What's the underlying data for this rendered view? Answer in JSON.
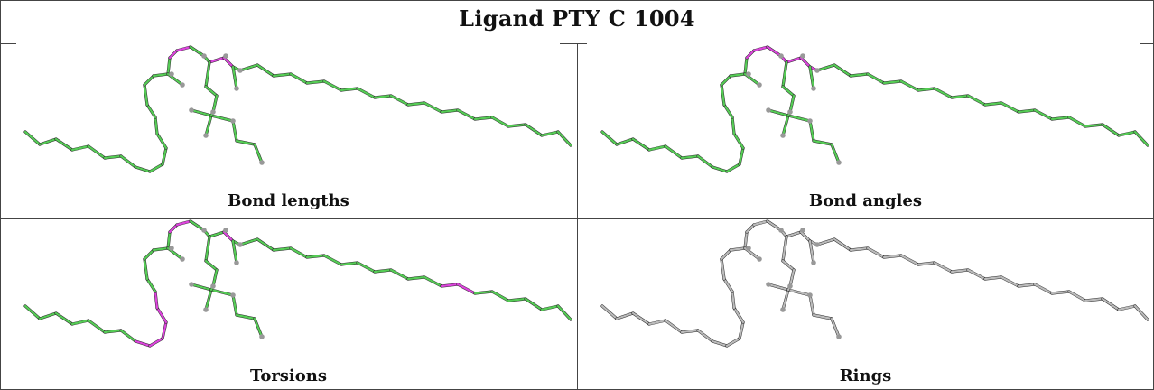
{
  "title": "Ligand PTY C 1004",
  "colors": {
    "ok": "#55cc55",
    "outlier": "#dd44dd",
    "neutral": "#bbbbbb",
    "atom": "#999999",
    "grid": "#444444"
  },
  "panels": [
    {
      "caption": "Bond lengths",
      "mode": "lengths"
    },
    {
      "caption": "Bond angles",
      "mode": "angles"
    },
    {
      "caption": "Torsions",
      "mode": "torsions"
    },
    {
      "caption": "Rings",
      "mode": "rings"
    }
  ]
}
